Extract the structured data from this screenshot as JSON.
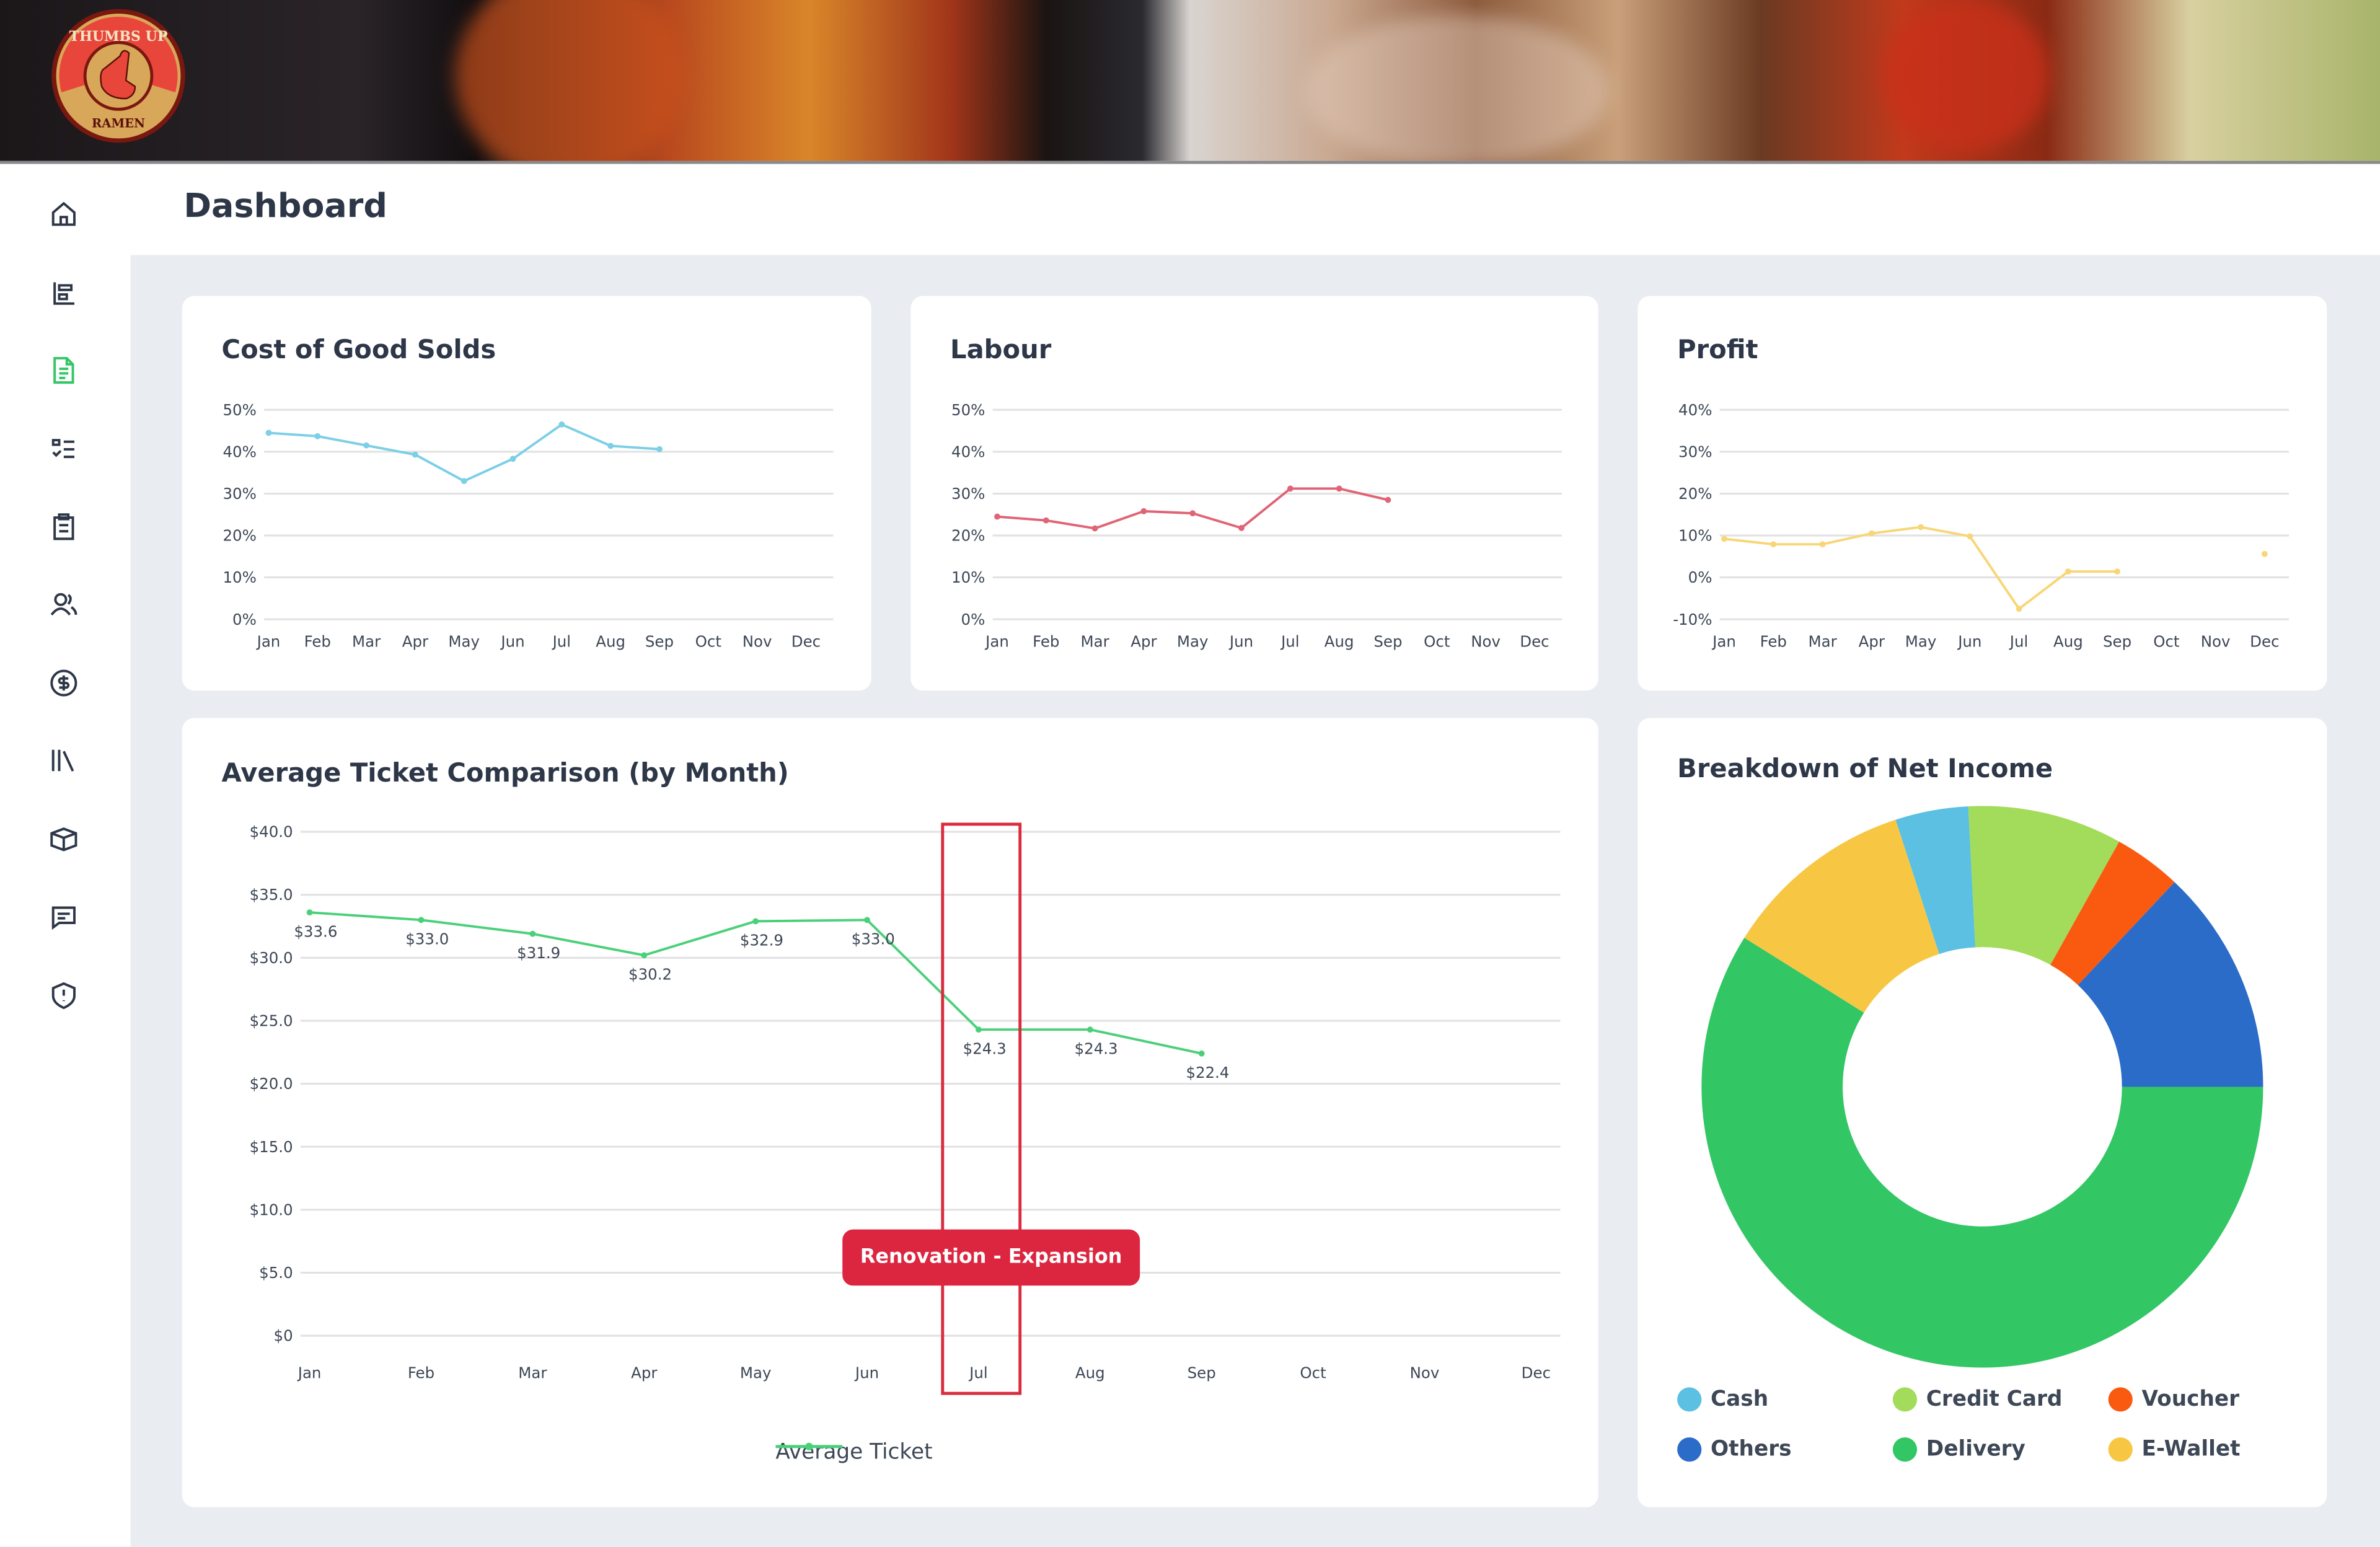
{
  "brand": {
    "logo_text_top": "THUMBS UP",
    "logo_text_bottom": "RAMEN"
  },
  "header": {
    "title": "Dashboard"
  },
  "sidebar": {
    "items": [
      {
        "icon": "home-icon",
        "active": false
      },
      {
        "icon": "bar-chart-icon",
        "active": false
      },
      {
        "icon": "document-icon",
        "active": true
      },
      {
        "icon": "checklist-icon",
        "active": false
      },
      {
        "icon": "clipboard-icon",
        "active": false
      },
      {
        "icon": "users-icon",
        "active": false
      },
      {
        "icon": "dollar-icon",
        "active": false
      },
      {
        "icon": "library-icon",
        "active": false
      },
      {
        "icon": "box-icon",
        "active": false
      },
      {
        "icon": "message-icon",
        "active": false
      },
      {
        "icon": "shield-alert-icon",
        "active": false
      }
    ]
  },
  "chart_data": [
    {
      "id": "cogs",
      "type": "line",
      "title": "Cost of Good Solds",
      "color": "#7ccfe6",
      "categories": [
        "Jan",
        "Feb",
        "Mar",
        "Apr",
        "May",
        "Jun",
        "Jul",
        "Aug",
        "Sep",
        "Oct",
        "Nov",
        "Dec"
      ],
      "values": [
        44.5,
        43.7,
        41.5,
        39.3,
        33.0,
        38.3,
        46.5,
        41.4,
        40.6,
        null,
        null,
        null
      ],
      "yticks": [
        "50%",
        "40%",
        "30%",
        "20%",
        "10%",
        "0%"
      ],
      "ylim": [
        0,
        50
      ],
      "unit": "%"
    },
    {
      "id": "labour",
      "type": "line",
      "title": "Labour",
      "color": "#e06476",
      "categories": [
        "Jan",
        "Feb",
        "Mar",
        "Apr",
        "May",
        "Jun",
        "Jul",
        "Aug",
        "Sep",
        "Oct",
        "Nov",
        "Dec"
      ],
      "values": [
        24.5,
        23.6,
        21.7,
        25.8,
        25.3,
        21.8,
        31.2,
        31.2,
        28.5,
        null,
        null,
        null
      ],
      "yticks": [
        "50%",
        "40%",
        "30%",
        "20%",
        "10%",
        "0%"
      ],
      "ylim": [
        0,
        50
      ],
      "unit": "%"
    },
    {
      "id": "profit",
      "type": "line",
      "title": "Profit",
      "color": "#f8d677",
      "categories": [
        "Jan",
        "Feb",
        "Mar",
        "Apr",
        "May",
        "Jun",
        "Jul",
        "Aug",
        "Sep",
        "Oct",
        "Nov",
        "Dec"
      ],
      "values": [
        9.2,
        7.9,
        7.9,
        10.5,
        12.0,
        9.8,
        -7.5,
        1.4,
        1.4,
        null,
        null,
        5.6
      ],
      "yticks": [
        "40%",
        "30%",
        "20%",
        "10%",
        "0%",
        "-10%"
      ],
      "ylim": [
        -10,
        40
      ],
      "unit": "%"
    },
    {
      "id": "ticket",
      "type": "line",
      "title": "Average Ticket Comparison (by Month)",
      "color": "#4bd07a",
      "categories": [
        "Jan",
        "Feb",
        "Mar",
        "Apr",
        "May",
        "Jun",
        "Jul",
        "Aug",
        "Sep",
        "Oct",
        "Nov",
        "Dec"
      ],
      "series": [
        {
          "name": "Average Ticket",
          "values": [
            33.6,
            33.0,
            31.9,
            30.2,
            32.9,
            33.0,
            24.3,
            24.3,
            22.4,
            null,
            null,
            null
          ]
        }
      ],
      "data_labels": [
        "$33.6",
        "$33.0",
        "$31.9",
        "$30.2",
        "$32.9",
        "$33.0",
        "$24.3",
        "$24.3",
        "$22.4"
      ],
      "yticks": [
        "$40.0",
        "$35.0",
        "$30.0",
        "$25.0",
        "$20.0",
        "$15.0",
        "$10.0",
        "$5.0",
        "$0"
      ],
      "ylim": [
        0,
        40
      ],
      "annotation": {
        "label": "Renovation - Expansion",
        "month": "Jul",
        "color": "#dc2640"
      },
      "legend": "bottom"
    },
    {
      "id": "net-income",
      "type": "pie",
      "title": "Breakdown of Net Income",
      "donut": true,
      "slices": [
        {
          "label": "Others",
          "value": 13.0,
          "color": "#2b6cc9"
        },
        {
          "label": "Voucher",
          "value": 3.9,
          "color": "#fa5a0f"
        },
        {
          "label": "Credit Card",
          "value": 8.9,
          "color": "#a3dc5a"
        },
        {
          "label": "Cash",
          "value": 4.2,
          "color": "#5bc0e1"
        },
        {
          "label": "E-Wallet",
          "value": 11.1,
          "color": "#f7c744"
        },
        {
          "label": "Delivery",
          "value": 58.9,
          "color": "#33c665"
        }
      ],
      "legend_order": [
        "Cash",
        "Credit Card",
        "Voucher",
        "Others",
        "Delivery",
        "E-Wallet"
      ],
      "legend": "bottom"
    }
  ]
}
